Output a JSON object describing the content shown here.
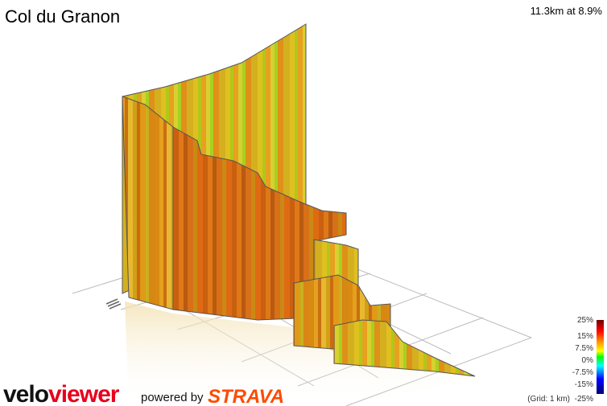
{
  "header": {
    "title": "Col du Granon",
    "stats": "11.3km at 8.9%"
  },
  "legend": {
    "labels": [
      "25%",
      "15%",
      "7.5%",
      "0%",
      "-7.5%",
      "-15%",
      "-25%"
    ],
    "grid_note": "(Grid: 1 km)"
  },
  "branding": {
    "logo_velo": "velo",
    "logo_viewer": "viewer",
    "powered_by": "powered by",
    "strava": "STRAVA"
  }
}
